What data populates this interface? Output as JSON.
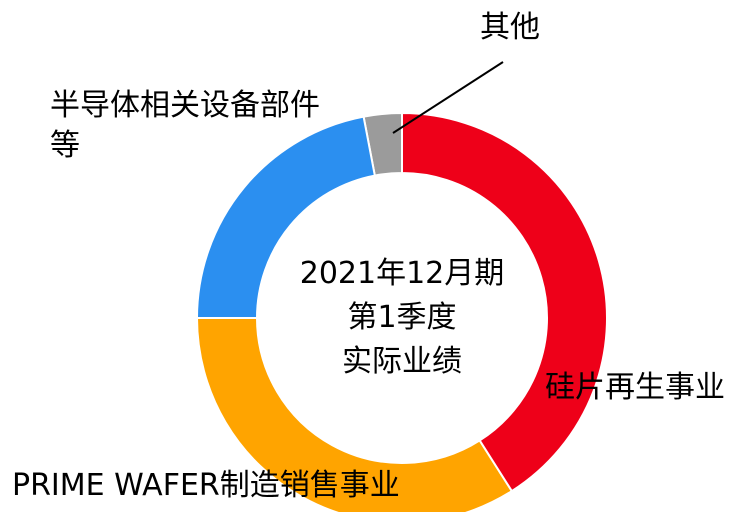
{
  "chart_data": {
    "type": "pie",
    "categories": [
      "硅片再生事业",
      "PRIME WAFER制造销售事业",
      "半导体相关设备部件等",
      "其他"
    ],
    "values": [
      41,
      34,
      22,
      3
    ],
    "colors": [
      "#ee0019",
      "#ffa400",
      "#2b8ff0",
      "#9b9b9b"
    ],
    "center_text": [
      "2021年12月期",
      "第1季度",
      "实际业绩"
    ]
  }
}
